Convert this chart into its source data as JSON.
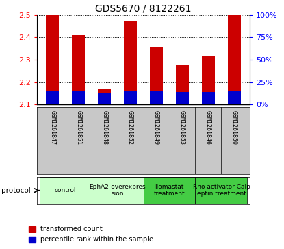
{
  "title": "GDS5670 / 8122261",
  "samples": [
    "GSM1261847",
    "GSM1261851",
    "GSM1261848",
    "GSM1261852",
    "GSM1261849",
    "GSM1261853",
    "GSM1261846",
    "GSM1261850"
  ],
  "red_values": [
    2.5,
    2.41,
    2.17,
    2.475,
    2.36,
    2.275,
    2.315,
    2.5
  ],
  "blue_pct": [
    0.16,
    0.15,
    0.13,
    0.16,
    0.15,
    0.14,
    0.14,
    0.16
  ],
  "y_min": 2.1,
  "y_max": 2.5,
  "y_ticks": [
    2.1,
    2.2,
    2.3,
    2.4,
    2.5
  ],
  "y2_ticks": [
    0,
    25,
    50,
    75,
    100
  ],
  "protocols": [
    {
      "label": "control",
      "spans": [
        0,
        2
      ],
      "color": "#ccffcc"
    },
    {
      "label": "EphA2-overexpres\nsion",
      "spans": [
        2,
        4
      ],
      "color": "#ccffcc"
    },
    {
      "label": "Ilomastat\ntreatment",
      "spans": [
        4,
        6
      ],
      "color": "#44cc44"
    },
    {
      "label": "Rho activator Calp\neptin treatment",
      "spans": [
        6,
        8
      ],
      "color": "#44cc44"
    }
  ],
  "bar_width": 0.5,
  "red_color": "#cc0000",
  "blue_color": "#0000cc",
  "sample_bg_color": "#c8c8c8",
  "plot_bg": "#ffffff",
  "legend_red": "transformed count",
  "legend_blue": "percentile rank within the sample"
}
